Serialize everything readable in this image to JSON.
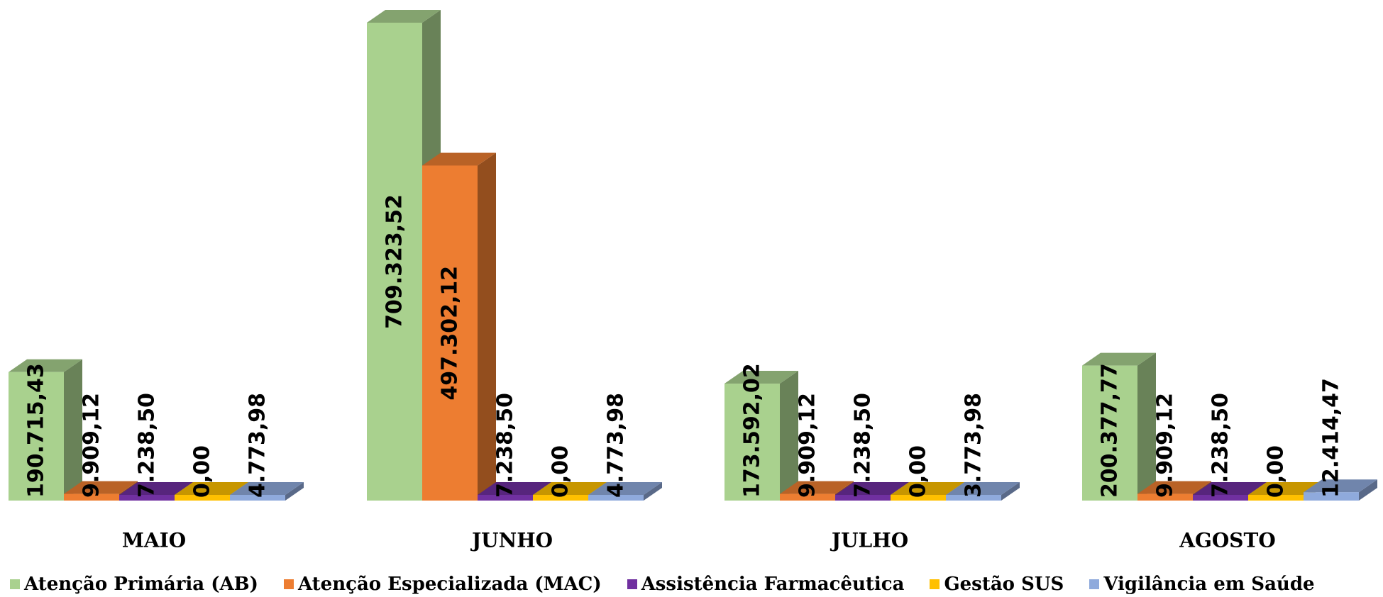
{
  "chart_data": {
    "type": "bar",
    "categories": [
      "MAIO",
      "JUNHO",
      "JULHO",
      "AGOSTO"
    ],
    "series": [
      {
        "name": "Atenção Primária (AB)",
        "color": "#a9d18e",
        "values": [
          190715.43,
          709323.52,
          173592.02,
          200377.77
        ],
        "labels": [
          "190.715,43",
          "709.323,52",
          "173.592,02",
          "200.377,77"
        ]
      },
      {
        "name": "Atenção Especializada (MAC)",
        "color": "#ed7d31",
        "values": [
          9909.12,
          497302.12,
          9909.12,
          9909.12
        ],
        "labels": [
          "9.909,12",
          "497.302,12",
          "9.909,12",
          "9.909,12"
        ]
      },
      {
        "name": "Assistência Farmacêutica",
        "color": "#7030a0",
        "values": [
          7238.5,
          7238.5,
          7238.5,
          7238.5
        ],
        "labels": [
          "7.238,50",
          "7.238,50",
          "7.238,50",
          "7.238,50"
        ]
      },
      {
        "name": "Gestão SUS",
        "color": "#ffc000",
        "values": [
          0.0,
          0.0,
          0.0,
          0.0
        ],
        "labels": [
          "0,00",
          "0,00",
          "0,00",
          "0,00"
        ]
      },
      {
        "name": "Vigilância em Saúde",
        "color": "#8faadc",
        "values": [
          4773.98,
          4773.98,
          3773.98,
          12414.47
        ],
        "labels": [
          "4.773,98",
          "4.773,98",
          "3.773,98",
          "12.414,47"
        ]
      }
    ],
    "grid": false,
    "legend": "bottom",
    "ylim": [
      0,
      709323.52
    ]
  }
}
